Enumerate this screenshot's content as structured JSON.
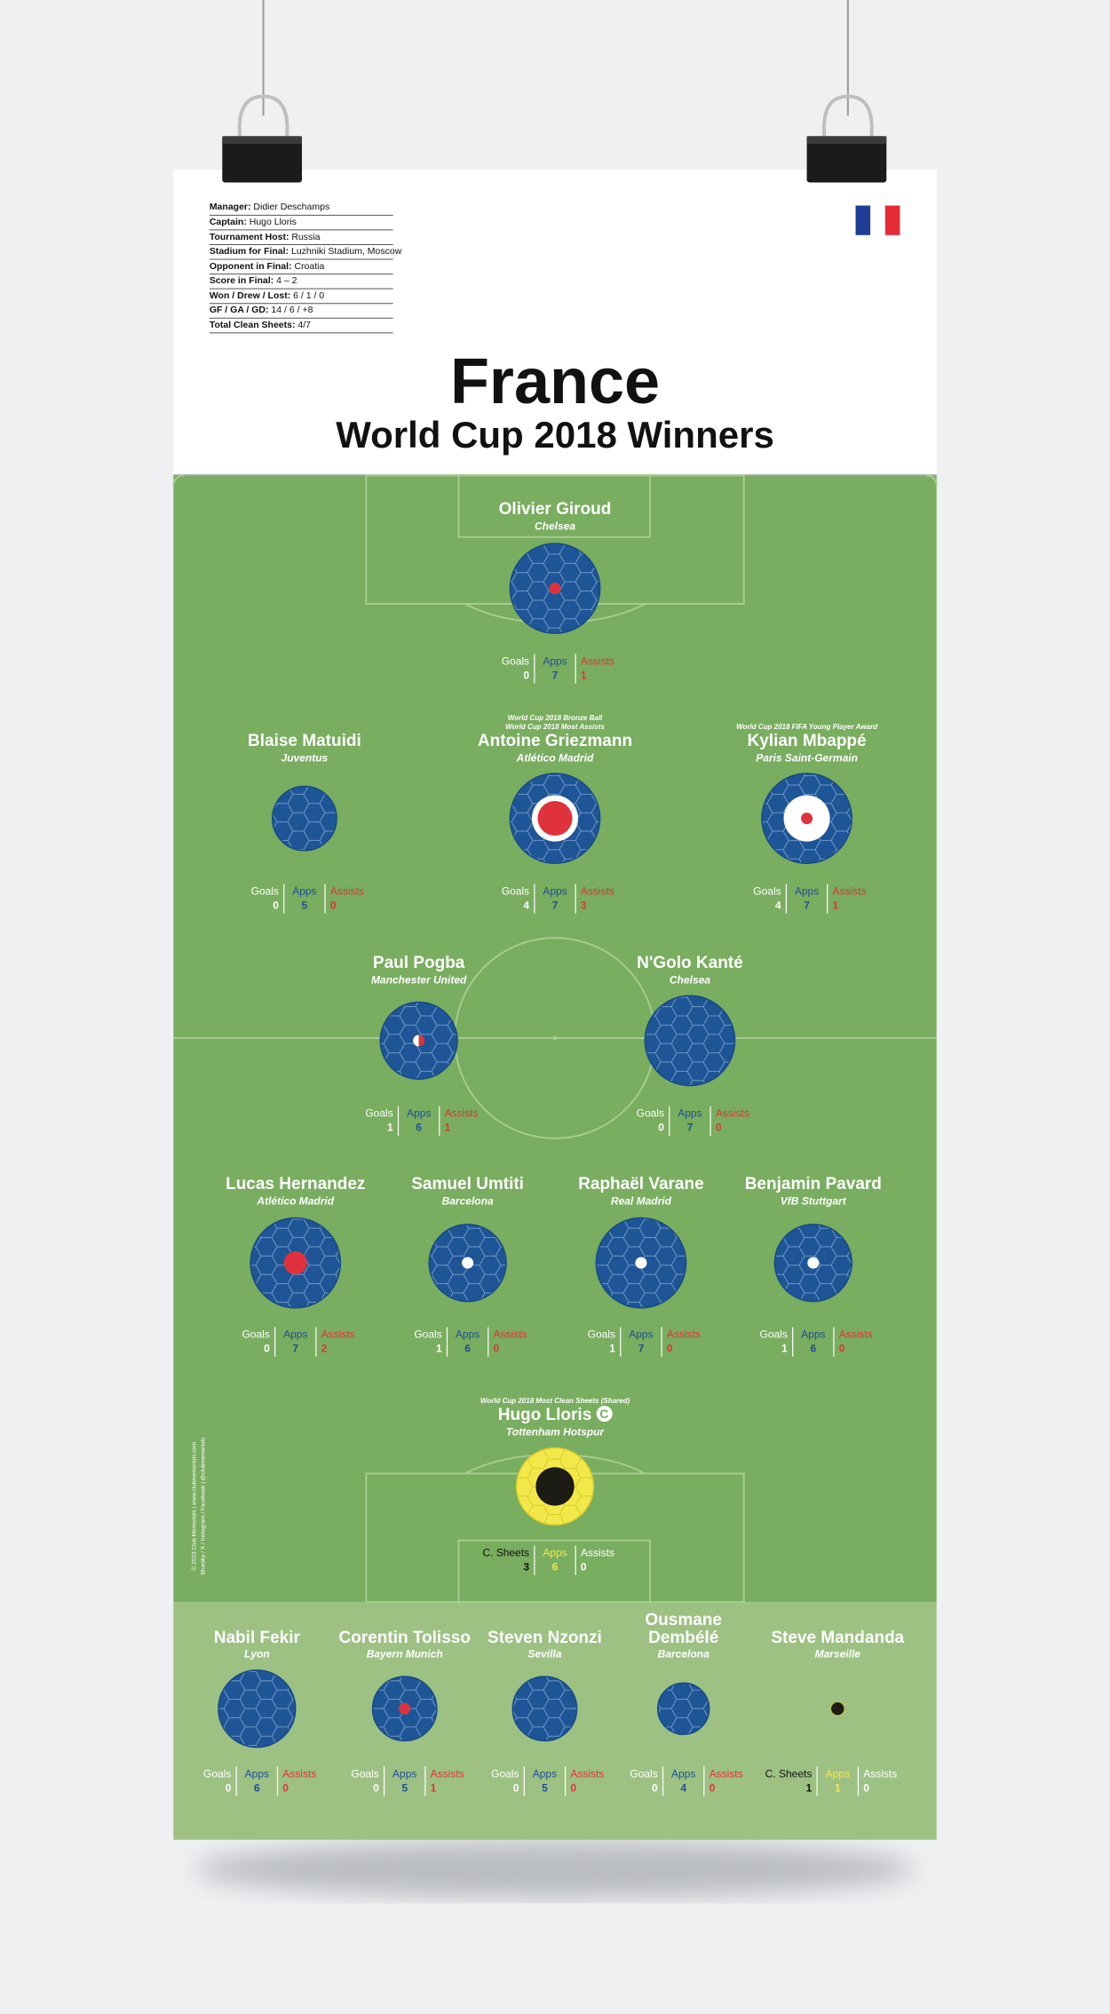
{
  "info": [
    {
      "label": "Manager:",
      "value": "Didier Deschamps"
    },
    {
      "label": "Captain:",
      "value": "Hugo Lloris"
    },
    {
      "label": "Tournament Host:",
      "value": "Russia"
    },
    {
      "label": "Stadium for Final:",
      "value": "Luzhniki Stadium, Moscow"
    },
    {
      "label": "Opponent in Final:",
      "value": "Croatia"
    },
    {
      "label": "Score in Final:",
      "value": "4 – 2"
    },
    {
      "label": "Won / Drew / Lost:",
      "value": "6 / 1 / 0"
    },
    {
      "label": "GF / GA / GD:",
      "value": "14 / 6 / +8"
    },
    {
      "label": "Total Clean Sheets:",
      "value": "4/7"
    }
  ],
  "title": "France",
  "subtitle": "World Cup 2018 Winners",
  "players": [
    {
      "name": "Olivier Giroud",
      "club": "Chelsea",
      "stats": [
        {
          "label": "Goals",
          "value": 0
        },
        {
          "label": "Apps",
          "value": 7
        },
        {
          "label": "Assists",
          "value": 1
        }
      ]
    },
    {
      "name": "Blaise Matuidi",
      "club": "Juventus",
      "stats": [
        {
          "label": "Goals",
          "value": 0
        },
        {
          "label": "Apps",
          "value": 5
        },
        {
          "label": "Assists",
          "value": 0
        }
      ]
    },
    {
      "name": "Antoine Griezmann",
      "club": "Atlético Madrid",
      "awards": [
        "World Cup 2018 Bronze Ball",
        "World Cup 2018 Most Assists"
      ],
      "stats": [
        {
          "label": "Goals",
          "value": 4
        },
        {
          "label": "Apps",
          "value": 7
        },
        {
          "label": "Assists",
          "value": 3
        }
      ]
    },
    {
      "name": "Kylian Mbappé",
      "club": "Paris Saint-Germain",
      "awards": [
        "World Cup 2018 FIFA Young Player Award"
      ],
      "stats": [
        {
          "label": "Goals",
          "value": 4
        },
        {
          "label": "Apps",
          "value": 7
        },
        {
          "label": "Assists",
          "value": 1
        }
      ]
    },
    {
      "name": "Paul Pogba",
      "club": "Manchester United",
      "stats": [
        {
          "label": "Goals",
          "value": 1
        },
        {
          "label": "Apps",
          "value": 6
        },
        {
          "label": "Assists",
          "value": 1
        }
      ]
    },
    {
      "name": "N'Golo Kanté",
      "club": "Chelsea",
      "stats": [
        {
          "label": "Goals",
          "value": 0
        },
        {
          "label": "Apps",
          "value": 7
        },
        {
          "label": "Assists",
          "value": 0
        }
      ]
    },
    {
      "name": "Lucas Hernandez",
      "club": "Atlético Madrid",
      "stats": [
        {
          "label": "Goals",
          "value": 0
        },
        {
          "label": "Apps",
          "value": 7
        },
        {
          "label": "Assists",
          "value": 2
        }
      ]
    },
    {
      "name": "Samuel Umtiti",
      "club": "Barcelona",
      "stats": [
        {
          "label": "Goals",
          "value": 1
        },
        {
          "label": "Apps",
          "value": 6
        },
        {
          "label": "Assists",
          "value": 0
        }
      ]
    },
    {
      "name": "Raphaël Varane",
      "club": "Real Madrid",
      "stats": [
        {
          "label": "Goals",
          "value": 1
        },
        {
          "label": "Apps",
          "value": 7
        },
        {
          "label": "Assists",
          "value": 0
        }
      ]
    },
    {
      "name": "Benjamin Pavard",
      "club": "VfB Stuttgart",
      "stats": [
        {
          "label": "Goals",
          "value": 1
        },
        {
          "label": "Apps",
          "value": 6
        },
        {
          "label": "Assists",
          "value": 0
        }
      ]
    },
    {
      "name": "Hugo Lloris",
      "badge": "C",
      "club": "Tottenham Hotspur",
      "awards": [
        "World Cup 2018 Most Clean Sheets (Shared)"
      ],
      "stats": [
        {
          "label": "C. Sheets",
          "value": 3
        },
        {
          "label": "Apps",
          "value": 6
        },
        {
          "label": "Assists",
          "value": 0
        }
      ]
    }
  ],
  "substitutes": [
    {
      "name": "Nabil Fekir",
      "club": "Lyon",
      "stats": [
        {
          "label": "Goals",
          "value": 0
        },
        {
          "label": "Apps",
          "value": 6
        },
        {
          "label": "Assists",
          "value": 0
        }
      ]
    },
    {
      "name": "Corentin Tolisso",
      "club": "Bayern Munich",
      "stats": [
        {
          "label": "Goals",
          "value": 0
        },
        {
          "label": "Apps",
          "value": 5
        },
        {
          "label": "Assists",
          "value": 1
        }
      ]
    },
    {
      "name": "Steven Nzonzi",
      "club": "Sevilla",
      "stats": [
        {
          "label": "Goals",
          "value": 0
        },
        {
          "label": "Apps",
          "value": 5
        },
        {
          "label": "Assists",
          "value": 0
        }
      ]
    },
    {
      "name": "Ousmane Dembélé",
      "club": "Barcelona",
      "stats": [
        {
          "label": "Goals",
          "value": 0
        },
        {
          "label": "Apps",
          "value": 4
        },
        {
          "label": "Assists",
          "value": 0
        }
      ]
    },
    {
      "name": "Steve Mandanda",
      "club": "Marseille",
      "stats": [
        {
          "label": "C. Sheets",
          "value": 1
        },
        {
          "label": "Apps",
          "value": 1
        },
        {
          "label": "Assists",
          "value": 0
        }
      ]
    }
  ],
  "credits": [
    "© 2023 Club Memorials | www.clubmemorials.com",
    "Bluesky / X / Instagram / Facebook | @clubmemorials"
  ]
}
